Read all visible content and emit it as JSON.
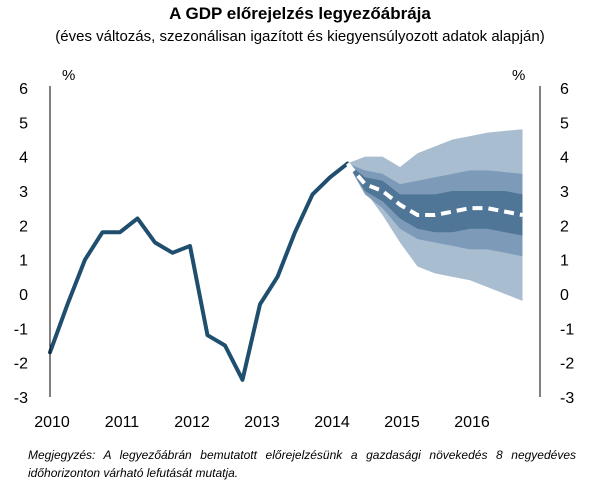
{
  "chart_data": {
    "type": "line",
    "title": "A GDP előrejelzés legyezőábrája",
    "subtitle": "(éves változás, szezonálisan igazított és kiegyensúlyozott adatok alapján)",
    "ylabel_left": "%",
    "ylabel_right": "%",
    "ylim": [
      -3,
      6
    ],
    "yticks": [
      "6",
      "5",
      "4",
      "3",
      "2",
      "1",
      "0",
      "-1",
      "-2",
      "-3"
    ],
    "xlim": [
      2010,
      2017
    ],
    "xticks": [
      "2010",
      "2011",
      "2012",
      "2013",
      "2014",
      "2015",
      "2016"
    ],
    "grid": false,
    "colors": {
      "actual_line": "#1f4e6e",
      "forecast_line": "#ffffff",
      "fan_outer": "#a9bdd1",
      "fan_middle": "#7d9bb8",
      "fan_inner": "#4f7597"
    },
    "series": [
      {
        "role": "actual",
        "x": [
          2010.0,
          2010.25,
          2010.5,
          2010.75,
          2011.0,
          2011.25,
          2011.5,
          2011.75,
          2012.0,
          2012.25,
          2012.5,
          2012.75,
          2013.0,
          2013.25,
          2013.5,
          2013.75,
          2014.0,
          2014.25
        ],
        "values": [
          -1.7,
          -0.3,
          1.0,
          1.8,
          1.8,
          2.2,
          1.5,
          1.2,
          1.4,
          -1.2,
          -1.5,
          -2.5,
          -0.3,
          0.5,
          1.8,
          2.9,
          3.4,
          3.8
        ]
      },
      {
        "role": "forecast-median",
        "x": [
          2014.25,
          2014.5,
          2014.75,
          2015.0,
          2015.25,
          2015.5,
          2015.75,
          2016.0,
          2016.25,
          2016.5,
          2016.75
        ],
        "values": [
          3.8,
          3.2,
          3.0,
          2.6,
          2.3,
          2.3,
          2.4,
          2.5,
          2.5,
          2.4,
          2.3
        ]
      }
    ],
    "fan": {
      "x": [
        2014.25,
        2014.5,
        2014.75,
        2015.0,
        2015.25,
        2015.5,
        2015.75,
        2016.0,
        2016.25,
        2016.5,
        2016.75
      ],
      "bands": [
        {
          "name_hidden": "outer",
          "upper": [
            3.8,
            4.0,
            4.0,
            3.7,
            4.1,
            4.3,
            4.5,
            4.6,
            4.7,
            4.75,
            4.8
          ],
          "lower": [
            3.8,
            3.0,
            2.3,
            1.5,
            0.8,
            0.6,
            0.5,
            0.4,
            0.2,
            0.0,
            -0.2
          ]
        },
        {
          "name_hidden": "middle",
          "upper": [
            3.8,
            3.6,
            3.5,
            3.2,
            3.3,
            3.4,
            3.5,
            3.6,
            3.6,
            3.55,
            3.5
          ],
          "lower": [
            3.8,
            2.9,
            2.5,
            1.9,
            1.6,
            1.5,
            1.4,
            1.3,
            1.3,
            1.2,
            1.1
          ]
        },
        {
          "name_hidden": "inner",
          "upper": [
            3.8,
            3.4,
            3.3,
            2.9,
            2.9,
            2.9,
            3.0,
            3.0,
            3.0,
            3.0,
            2.9
          ],
          "lower": [
            3.8,
            3.0,
            2.7,
            2.2,
            1.9,
            1.8,
            1.8,
            1.9,
            1.9,
            1.8,
            1.7
          ]
        }
      ]
    }
  },
  "note": "Megjegyzés: A legyezőábrán bemutatott előrejelzésünk a gazdasági növekedés 8 negyedéves időhorizonton várható lefutását mutatja."
}
